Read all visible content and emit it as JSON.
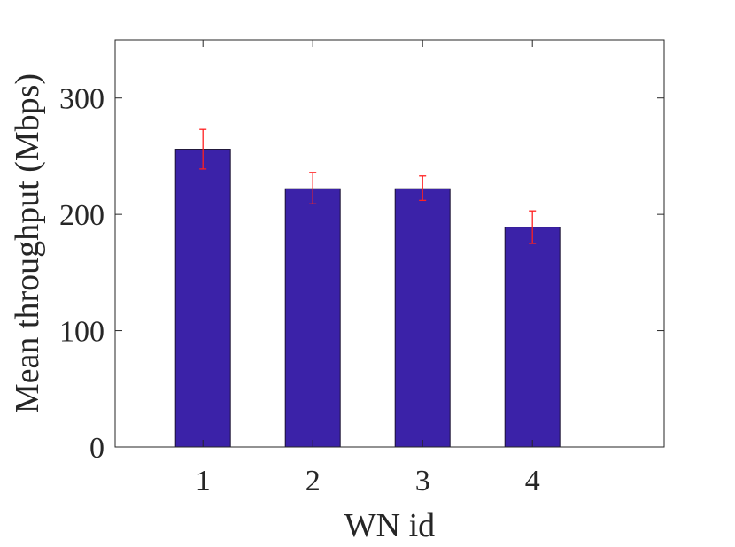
{
  "chart_data": {
    "type": "bar",
    "title": "",
    "xlabel": "WN id",
    "ylabel": "Mean throughput (Mbps)",
    "categories": [
      "1",
      "2",
      "3",
      "4"
    ],
    "values": [
      256,
      222,
      222,
      189
    ],
    "error_low": [
      239,
      209,
      212,
      175
    ],
    "error_high": [
      273,
      236,
      233,
      203
    ],
    "ylim": [
      0,
      350
    ],
    "xlim": [
      0.2,
      5.2
    ],
    "yticks": [
      0,
      100,
      200,
      300
    ],
    "ytick_labels": [
      "0",
      "100",
      "200",
      "300"
    ],
    "grid": false,
    "legend": "none",
    "colors": {
      "bar_fill": "#3b22a8",
      "bar_stroke": "#1a1033",
      "error_bar": "#ff2020",
      "axis": "#262626"
    }
  }
}
